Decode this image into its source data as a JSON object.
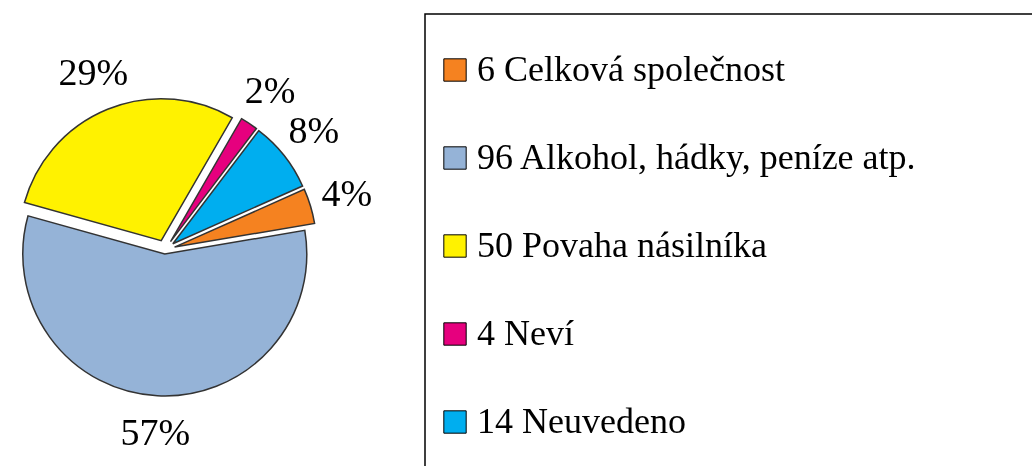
{
  "chart_data": {
    "type": "pie",
    "categories": [
      "6 Celková společnost",
      "96 Alkohol, hádky, peníze atp.",
      "50 Povaha násilníka",
      "4 Neví",
      "14 Neuvedeno"
    ],
    "values": [
      4,
      57,
      29,
      2,
      8
    ],
    "value_labels": [
      "4%",
      "57%",
      "29%",
      "2%",
      "8%"
    ],
    "colors": [
      "#f58220",
      "#95b3d7",
      "#fff200",
      "#e6007e",
      "#00aeef"
    ],
    "legend": "right"
  }
}
